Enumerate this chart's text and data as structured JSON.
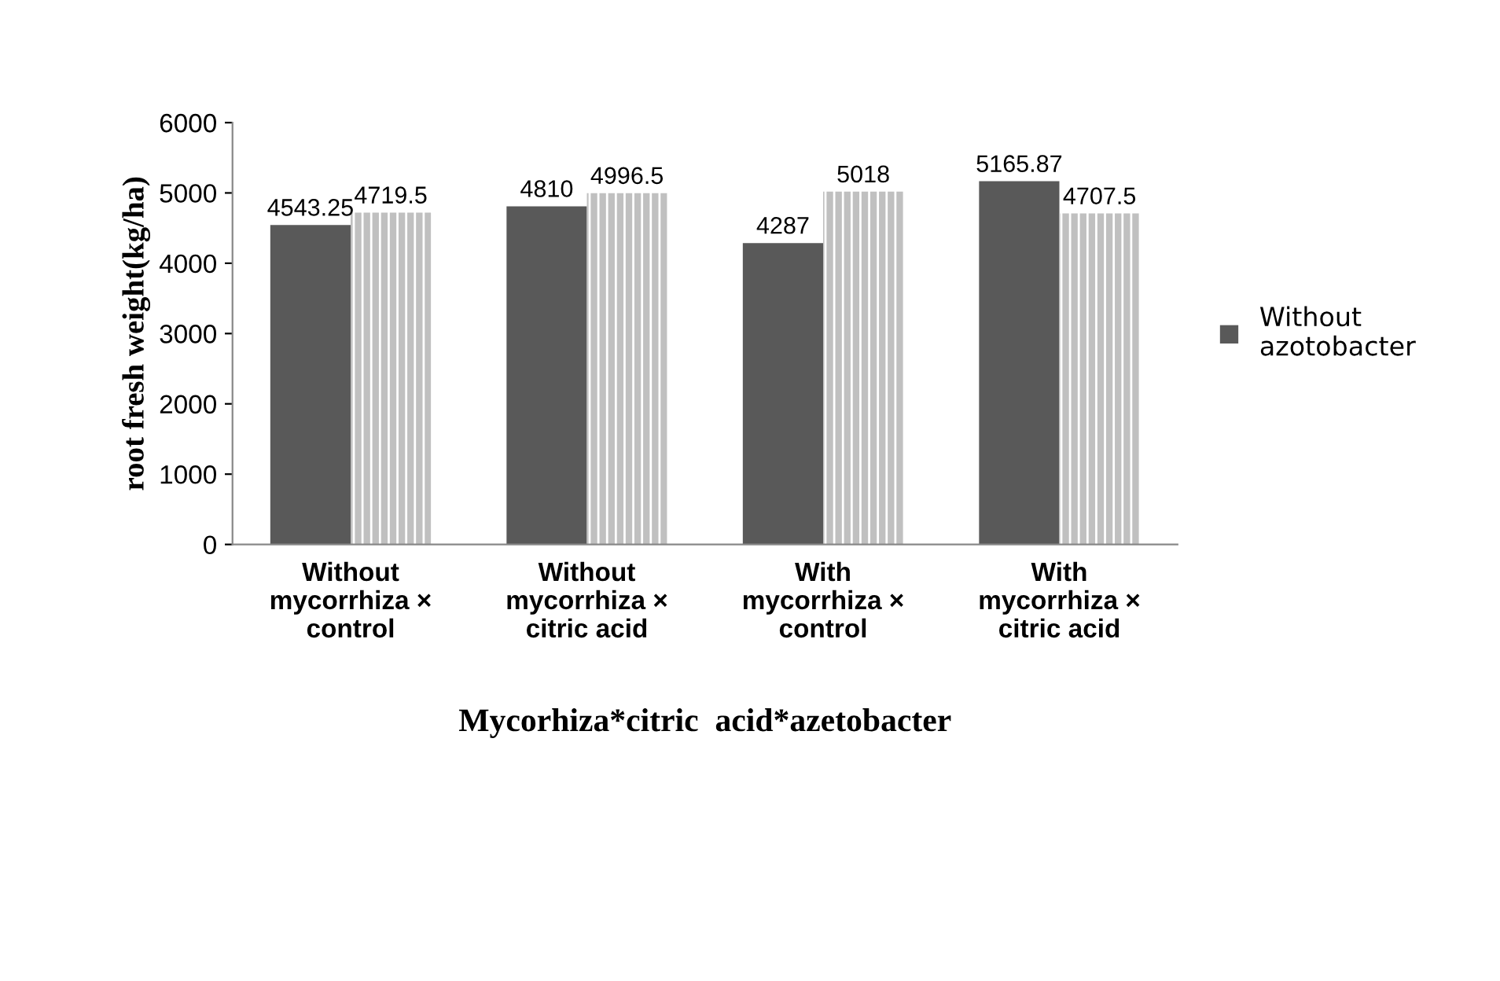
{
  "chart_data": {
    "type": "bar",
    "xlabel": "Mycorhiza*citric  acid*azetobacter",
    "ylabel": "root fresh weight(kg/ha)",
    "categories": [
      "Without\nmycorrhiza ×\ncontrol",
      "Without\nmycorrhiza ×\ncitric acid",
      "With\nmycorrhiza ×\ncontrol",
      "With\nmycorrhiza ×\ncitric acid"
    ],
    "series": [
      {
        "name": "Without\nazotobacter",
        "color": "#595959",
        "values": [
          4543.25,
          4810,
          4287,
          5165.87
        ]
      },
      {
        "color": "#c0c0c0",
        "values": [
          4719.5,
          4996.5,
          5018,
          4707.5
        ]
      }
    ],
    "ylim": [
      0,
      6000
    ],
    "yticks": [
      0,
      1000,
      2000,
      3000,
      4000,
      5000,
      6000
    ],
    "grid": false,
    "legend": "right",
    "data_labels": true
  }
}
